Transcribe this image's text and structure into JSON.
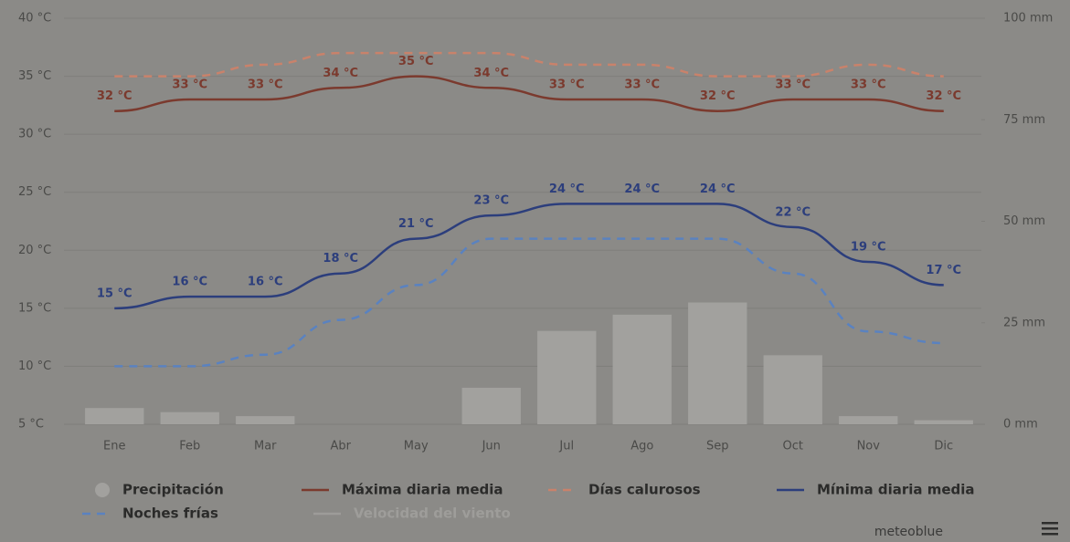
{
  "chart_data": {
    "type": "bar",
    "categories": [
      "Ene",
      "Feb",
      "Mar",
      "Abr",
      "May",
      "Jun",
      "Jul",
      "Ago",
      "Sep",
      "Oct",
      "Nov",
      "Dic"
    ],
    "ylim": [
      5,
      40
    ],
    "yticks": [
      {
        "value": 5,
        "label": "5 °C"
      },
      {
        "value": 10,
        "label": "10 °C"
      },
      {
        "value": 15,
        "label": "15 °C"
      },
      {
        "value": 20,
        "label": "20 °C"
      },
      {
        "value": 25,
        "label": "25 °C"
      },
      {
        "value": 30,
        "label": "30 °C"
      },
      {
        "value": 35,
        "label": "35 °C"
      },
      {
        "value": 40,
        "label": "40 °C"
      }
    ],
    "y2lim": [
      0,
      100
    ],
    "y2ticks": [
      {
        "value": 0,
        "label": "0 mm"
      },
      {
        "value": 25,
        "label": "25 mm"
      },
      {
        "value": 50,
        "label": "50 mm"
      },
      {
        "value": 75,
        "label": "75 mm"
      },
      {
        "value": 100,
        "label": "100 mm"
      }
    ],
    "grid": true,
    "series": [
      {
        "name": "Precipitación",
        "type": "bar",
        "axis": "y2",
        "color": "#a2a19e",
        "values": [
          4,
          3,
          2,
          0,
          0,
          9,
          23,
          27,
          30,
          17,
          2,
          1
        ]
      },
      {
        "name": "Máxima diaria media",
        "type": "line",
        "color": "#7b3a2e",
        "values": [
          32,
          33,
          33,
          34,
          35,
          34,
          33,
          33,
          32,
          33,
          33,
          32
        ],
        "value_labels": [
          "32 °C",
          "33 °C",
          "33 °C",
          "34 °C",
          "35 °C",
          "34 °C",
          "33 °C",
          "33 °C",
          "32 °C",
          "33 °C",
          "33 °C",
          "32 °C"
        ]
      },
      {
        "name": "Días calurosos",
        "type": "line",
        "dashed": true,
        "color": "#c9826b",
        "values": [
          35,
          35,
          36,
          37,
          37,
          37,
          36,
          36,
          35,
          35,
          36,
          35
        ]
      },
      {
        "name": "Mínima diaria media",
        "type": "line",
        "color": "#2c3e7c",
        "values": [
          15,
          16,
          16,
          18,
          21,
          23,
          24,
          24,
          24,
          22,
          19,
          17
        ],
        "value_labels": [
          "15 °C",
          "16 °C",
          "16 °C",
          "18 °C",
          "21 °C",
          "23 °C",
          "24 °C",
          "24 °C",
          "24 °C",
          "22 °C",
          "19 °C",
          "17 °C"
        ]
      },
      {
        "name": "Noches frías",
        "type": "line",
        "dashed": true,
        "color": "#5a82c0",
        "values": [
          10,
          10,
          11,
          14,
          17,
          21,
          21,
          21,
          21,
          18,
          13,
          12
        ]
      },
      {
        "name": "Velocidad del viento",
        "type": "line",
        "hidden": true,
        "color": "#9d9c99",
        "values": [
          null,
          null,
          null,
          null,
          null,
          null,
          null,
          null,
          null,
          null,
          null,
          null
        ]
      }
    ],
    "credit": "meteoblue"
  }
}
